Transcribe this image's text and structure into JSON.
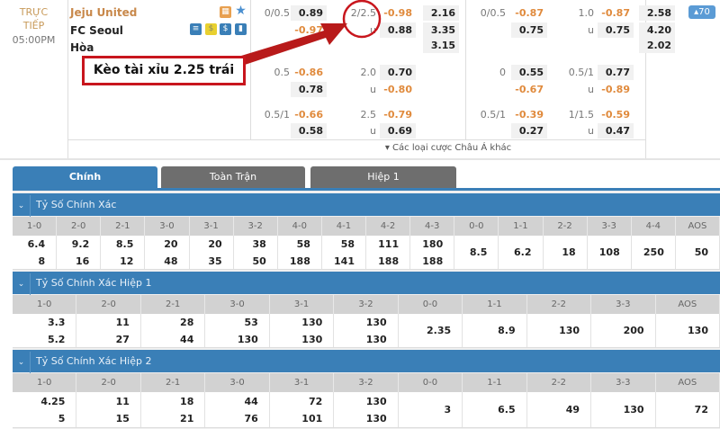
{
  "match": {
    "status_line1": "TRỰC",
    "status_line2": "TIẾP",
    "time": "05:00PM",
    "home": "Jeju United",
    "away": "FC Seoul",
    "draw": "Hòa",
    "more_count": "▴70",
    "more_markets": "▾ Các loại cược Châu Á khác"
  },
  "annotation": {
    "text": "Kèo tài xỉu 2.25 trái",
    "color": "#c8161d"
  },
  "full_time": [
    {
      "hdp": {
        "line": "0/0.5",
        "home": "0.89",
        "away": "-0.97"
      },
      "ou": {
        "line": "2/2.5",
        "over": "-0.98",
        "under_label": "u",
        "under": "0.88"
      },
      "x12": [
        "2.16",
        "3.35",
        "3.15"
      ]
    },
    {
      "hdp": {
        "line": "0.5",
        "home": "-0.86",
        "away": "0.78"
      },
      "ou": {
        "line": "2.0",
        "over": "0.70",
        "under_label": "u",
        "under": "-0.80"
      }
    },
    {
      "hdp": {
        "line": "0.5/1",
        "home": "-0.66",
        "away": "0.58"
      },
      "ou": {
        "line": "2.5",
        "over": "-0.79",
        "under_label": "u",
        "under": "0.69"
      }
    }
  ],
  "first_half": [
    {
      "hdp": {
        "line": "0/0.5",
        "home": "-0.87",
        "away": "0.75"
      },
      "ou": {
        "line": "1.0",
        "over": "-0.87",
        "under_label": "u",
        "under": "0.75"
      },
      "x12": [
        "2.58",
        "4.20",
        "2.02"
      ]
    },
    {
      "hdp": {
        "line": "0",
        "home": "0.55",
        "away": "-0.67"
      },
      "ou": {
        "line": "0.5/1",
        "over": "0.77",
        "under_label": "u",
        "under": "-0.89"
      }
    },
    {
      "hdp": {
        "line": "0.5/1",
        "home": "-0.39",
        "away": "0.27"
      },
      "ou": {
        "line": "1/1.5",
        "over": "-0.59",
        "under_label": "u",
        "under": "0.47"
      }
    }
  ],
  "tabs": [
    {
      "label": "Chính",
      "active": true
    },
    {
      "label": "Toàn Trận"
    },
    {
      "label": "Hiệp 1"
    }
  ],
  "sections": [
    {
      "title": "Tỷ Số Chính Xác",
      "headers": [
        "1-0",
        "2-0",
        "2-1",
        "3-0",
        "3-1",
        "3-2",
        "4-0",
        "4-1",
        "4-2",
        "4-3",
        "0-0",
        "1-1",
        "2-2",
        "3-3",
        "4-4",
        "AOS"
      ],
      "values": [
        [
          "6.4",
          "8"
        ],
        [
          "9.2",
          "16"
        ],
        [
          "8.5",
          "12"
        ],
        [
          "20",
          "48"
        ],
        [
          "20",
          "35"
        ],
        [
          "38",
          "50"
        ],
        [
          "58",
          "188"
        ],
        [
          "58",
          "141"
        ],
        [
          "111",
          "188"
        ],
        [
          "180",
          "188"
        ],
        [
          "8.5"
        ],
        [
          "6.2"
        ],
        [
          "18"
        ],
        [
          "108"
        ],
        [
          "250"
        ],
        [
          "50"
        ]
      ]
    },
    {
      "title": "Tỷ Số Chính Xác Hiệp 1",
      "headers": [
        "1-0",
        "2-0",
        "2-1",
        "3-0",
        "3-1",
        "3-2",
        "0-0",
        "1-1",
        "2-2",
        "3-3",
        "AOS"
      ],
      "values": [
        [
          "3.3",
          "5.2"
        ],
        [
          "11",
          "27"
        ],
        [
          "28",
          "44"
        ],
        [
          "53",
          "130"
        ],
        [
          "130",
          "130"
        ],
        [
          "130",
          "130"
        ],
        [
          "2.35"
        ],
        [
          "8.9"
        ],
        [
          "130"
        ],
        [
          "200"
        ],
        [
          "130"
        ]
      ]
    },
    {
      "title": "Tỷ Số Chính Xác Hiệp 2",
      "headers": [
        "1-0",
        "2-0",
        "2-1",
        "3-0",
        "3-1",
        "3-2",
        "0-0",
        "1-1",
        "2-2",
        "3-3",
        "AOS"
      ],
      "values": [
        [
          "4.25",
          "5"
        ],
        [
          "11",
          "15"
        ],
        [
          "18",
          "21"
        ],
        [
          "44",
          "76"
        ],
        [
          "72",
          "101"
        ],
        [
          "130",
          "130"
        ],
        [
          "3"
        ],
        [
          "6.5"
        ],
        [
          "49"
        ],
        [
          "130"
        ],
        [
          "72"
        ]
      ]
    }
  ]
}
